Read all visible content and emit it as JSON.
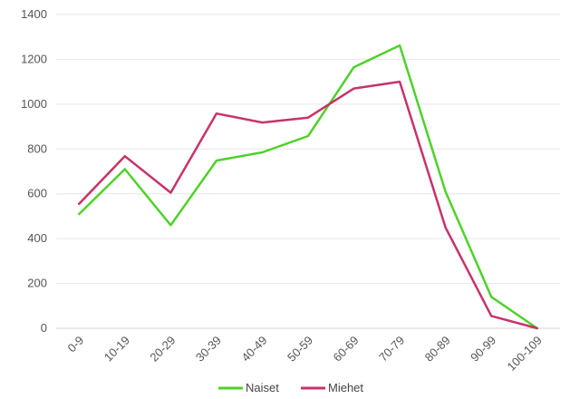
{
  "chart_data": {
    "type": "line",
    "categories": [
      "0-9",
      "10-19",
      "20-29",
      "30-39",
      "40-49",
      "50-59",
      "60-69",
      "70-79",
      "80-89",
      "90-99",
      "100-109"
    ],
    "series": [
      {
        "name": "Naiset",
        "color": "#4fd12a",
        "values": [
          510,
          710,
          460,
          748,
          785,
          858,
          1165,
          1262,
          610,
          140,
          0
        ]
      },
      {
        "name": "Miehet",
        "color": "#c8326a",
        "values": [
          555,
          768,
          605,
          958,
          918,
          940,
          1070,
          1100,
          450,
          55,
          0
        ]
      }
    ],
    "ylim": [
      0,
      1400
    ],
    "y_ticks": [
      0,
      200,
      400,
      600,
      800,
      1000,
      1200,
      1400
    ],
    "grid": true,
    "legend_position": "bottom-center",
    "title": "",
    "xlabel": "",
    "ylabel": ""
  }
}
